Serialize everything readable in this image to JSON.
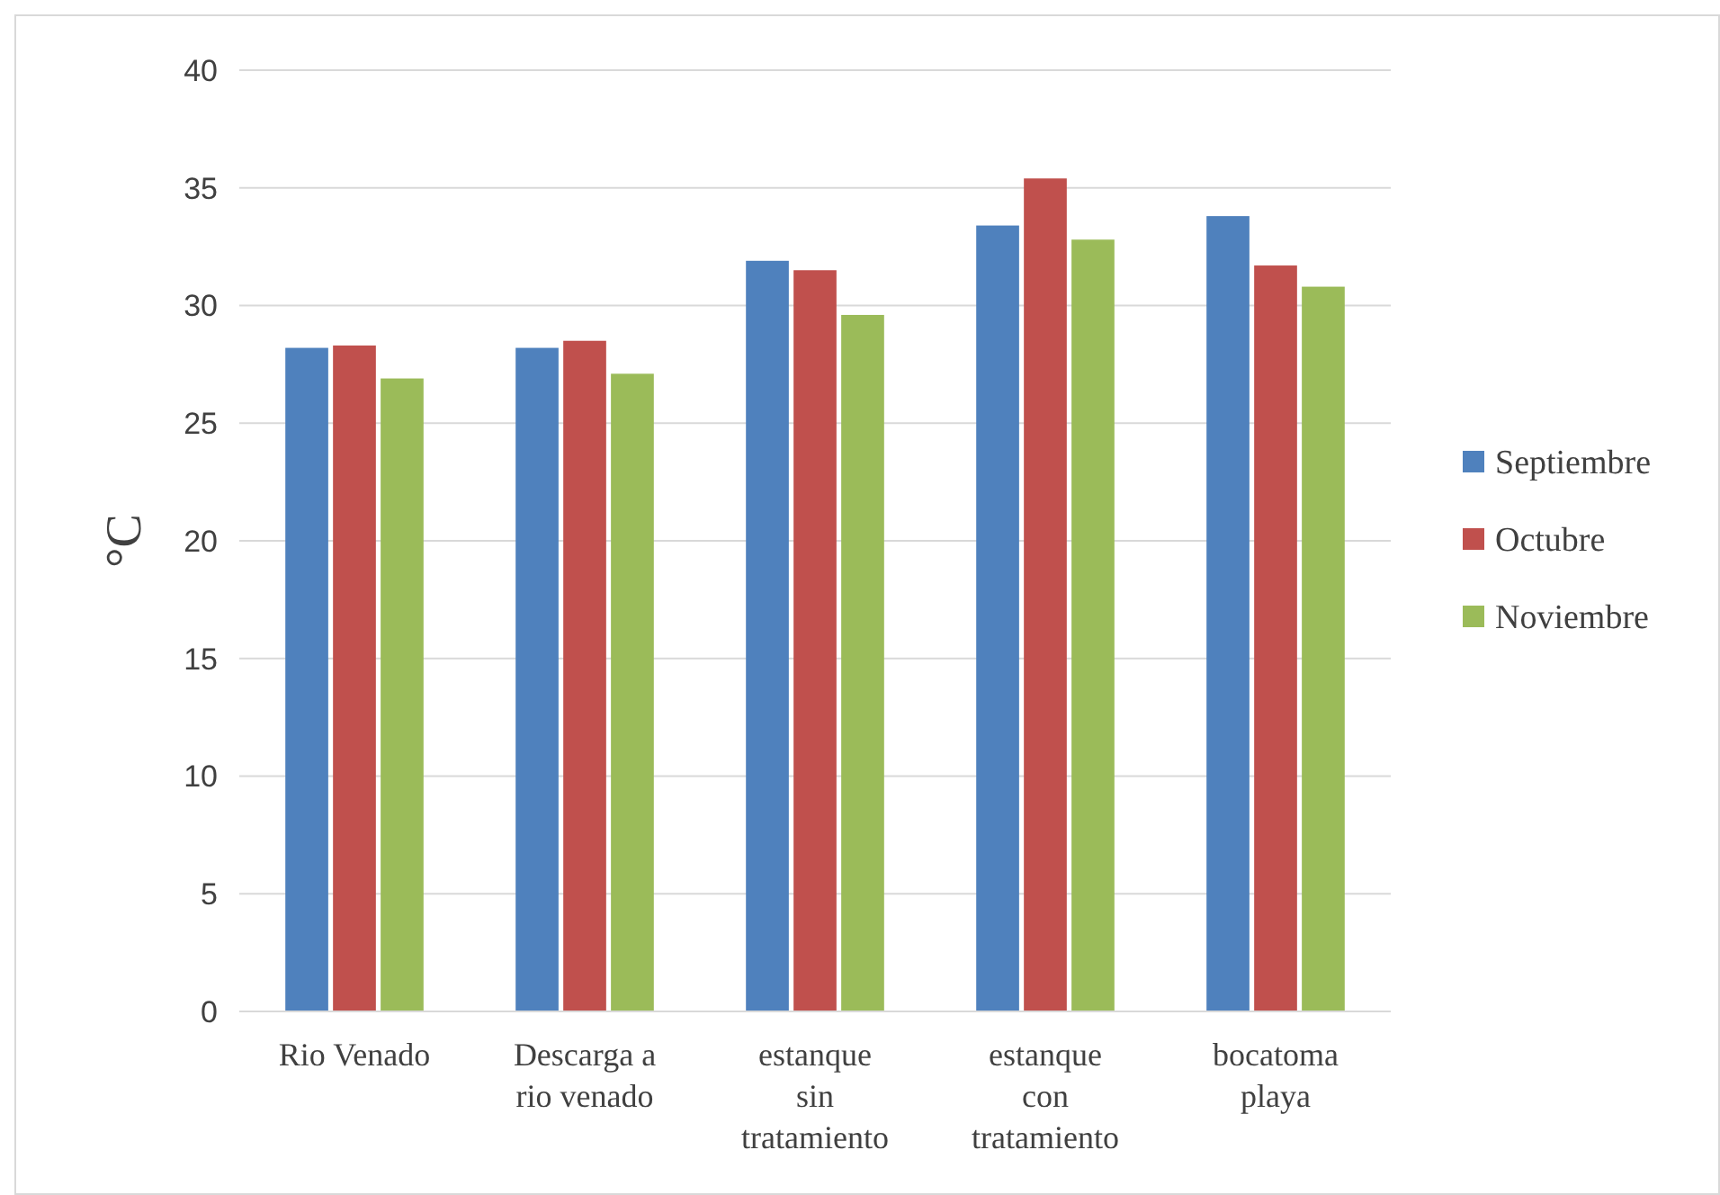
{
  "chart_data": {
    "type": "bar",
    "ylabel": "°C",
    "categories": [
      "Rio Venado",
      "Descarga a rio venado",
      "estanque sin tratamiento",
      "estanque con tratamiento",
      "bocatoma playa"
    ],
    "series": [
      {
        "name": "Septiembre",
        "color": "#4f81bd",
        "values": [
          28.2,
          28.2,
          31.9,
          33.4,
          33.8
        ]
      },
      {
        "name": "Octubre",
        "color": "#c0504d",
        "values": [
          28.3,
          28.5,
          31.5,
          35.4,
          31.7
        ]
      },
      {
        "name": "Noviembre",
        "color": "#9bbb59",
        "values": [
          26.9,
          27.1,
          29.6,
          32.8,
          30.8
        ]
      }
    ],
    "ylim": [
      0,
      40
    ],
    "yticks": [
      0,
      5,
      10,
      15,
      20,
      25,
      30,
      35,
      40
    ],
    "grid": "y",
    "legend": "right"
  }
}
